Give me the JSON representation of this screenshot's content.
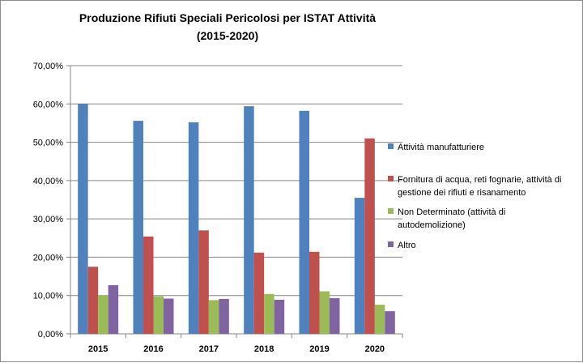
{
  "chart_data": {
    "type": "bar",
    "title": "Produzione Rifiuti Speciali Pericolosi per ISTAT Attività",
    "subtitle": "(2015-2020)",
    "categories": [
      "2015",
      "2016",
      "2017",
      "2018",
      "2019",
      "2020"
    ],
    "series": [
      {
        "name": "Attività manufatturiere",
        "color": "#4f81bd",
        "values": [
          60.0,
          55.6,
          55.2,
          59.4,
          58.2,
          35.5
        ]
      },
      {
        "name": "Fornitura di acqua, reti fognarie, attività di gestione dei rifiuti e risanamento",
        "color": "#c0504d",
        "values": [
          17.5,
          25.4,
          27.0,
          21.2,
          21.4,
          51.0
        ]
      },
      {
        "name": "Non Determinato (attività di autodemolizione)",
        "color": "#9bbb59",
        "values": [
          10.1,
          9.8,
          8.8,
          10.4,
          11.1,
          7.6
        ]
      },
      {
        "name": "Altro",
        "color": "#8064a2",
        "values": [
          12.7,
          9.2,
          9.1,
          8.9,
          9.3,
          5.9
        ]
      }
    ],
    "ylim": [
      0,
      70
    ],
    "yticks": [
      "0,00%",
      "10,00%",
      "20,00%",
      "30,00%",
      "40,00%",
      "50,00%",
      "60,00%",
      "70,00%"
    ],
    "grid": true,
    "legend": "right"
  }
}
